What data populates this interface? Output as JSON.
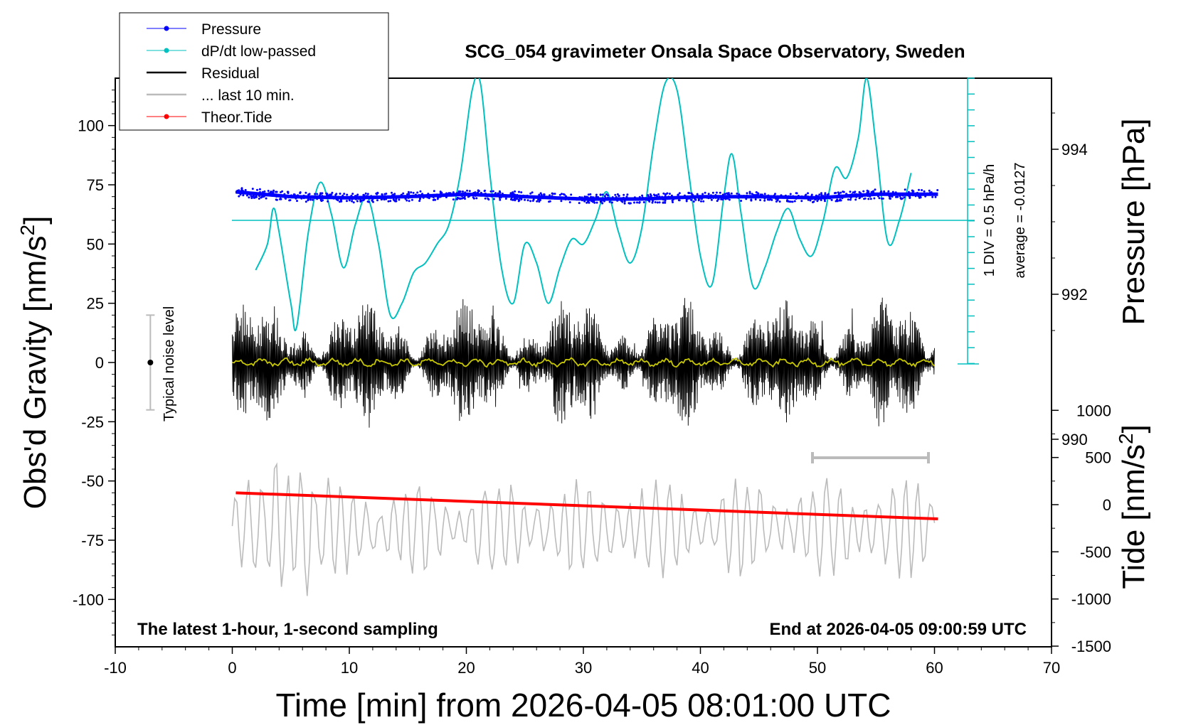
{
  "chart_data": {
    "type": "line",
    "title": "SCG_054 gravimeter Onsala Space Observatory, Sweden",
    "xlabel": "Time [min] from 2026-04-05 08:01:00 UTC",
    "ylabel_left": "Obs'd Gravity [nm/s",
    "ylabel_left_sup": "2",
    "ylabel_left_close": "]",
    "ylabel_right_pressure": "Pressure [hPa]",
    "ylabel_right_tide": "Tide [nm/s",
    "ylabel_right_tide_sup": "2",
    "ylabel_right_tide_close": "]",
    "xlim": [
      -10,
      70
    ],
    "ylim": [
      -120,
      120
    ],
    "x_ticks": [
      "-10",
      "0",
      "10",
      "20",
      "30",
      "40",
      "50",
      "60",
      "70"
    ],
    "y_ticks": [
      "100",
      "75",
      "50",
      "25",
      "0",
      "-25",
      "-50",
      "-75",
      "-100"
    ],
    "pressure_ticks": [
      "994",
      "992",
      "990"
    ],
    "tide_ticks": [
      "1000",
      "500",
      "0",
      "-500",
      "-1000",
      "-1500"
    ],
    "legend": [
      {
        "label": "Pressure",
        "color": "#0000ff",
        "marker": true
      },
      {
        "label": "dP/dt low-passed",
        "color": "#00c0c0",
        "marker": true
      },
      {
        "label": "Residual",
        "color": "#000000",
        "marker": false
      },
      {
        "label": "... last 10 min.",
        "color": "#bbbbbb",
        "marker": false
      },
      {
        "label": "Theor.Tide",
        "color": "#ff0000",
        "marker": true
      }
    ],
    "annotations": {
      "left_bottom": "The latest 1-hour, 1-second sampling",
      "right_bottom": "End at 2026-04-05 09:00:59 UTC",
      "noise_label": "Typical noise level",
      "div_label": "1 DIV = 0.5 hPa/h",
      "average_label": "average = -0.0127"
    },
    "noise_bar": {
      "x": -7,
      "y": 0,
      "half_range": 20
    },
    "series": [
      {
        "name": "Pressure",
        "color": "#0000ff",
        "x": [
          0.3,
          5,
          10,
          15,
          20,
          25,
          30,
          35,
          40,
          45,
          50,
          55,
          60.3
        ],
        "y": [
          72,
          70,
          69.5,
          70,
          71,
          70,
          69,
          69,
          70,
          70,
          69.5,
          71,
          71
        ]
      },
      {
        "name": "dP/dt low-passed",
        "color": "#00c0c0",
        "x": [
          2,
          3,
          3.5,
          4,
          5,
          5.5,
          6.5,
          7.5,
          8.5,
          9.5,
          10.5,
          11.5,
          12.5,
          13.5,
          14.5,
          15.5,
          16.5,
          17.5,
          18.5,
          19.5,
          20.5,
          21.2,
          22,
          23,
          24,
          25,
          26,
          27,
          28,
          29,
          30,
          31,
          32,
          33,
          34,
          35,
          36,
          37,
          38,
          39,
          40,
          41,
          42,
          42.7,
          43.5,
          44.5,
          45.5,
          46.5,
          47.5,
          48.5,
          49.5,
          50.5,
          51.5,
          52.5,
          53.5,
          54.2,
          55,
          56,
          57,
          58
        ],
        "y": [
          39,
          50,
          65,
          55,
          25,
          15,
          55,
          76,
          62,
          40,
          58,
          70,
          50,
          20,
          25,
          38,
          42,
          50,
          58,
          80,
          115,
          118,
          80,
          40,
          25,
          50,
          42,
          25,
          40,
          52,
          50,
          60,
          72,
          55,
          42,
          57,
          92,
          118,
          115,
          80,
          45,
          33,
          70,
          88,
          62,
          32,
          40,
          55,
          65,
          52,
          45,
          60,
          82,
          78,
          95,
          120,
          92,
          51,
          60,
          80
        ]
      },
      {
        "name": "Residual",
        "color": "#000000",
        "x_range": [
          0,
          60
        ],
        "amplitude": 25
      },
      {
        "name": "... last 10 min.",
        "color": "#bbbbbb",
        "x_range": [
          0,
          60
        ],
        "baseline": -70,
        "amplitude": 18
      },
      {
        "name": "Theor.Tide",
        "color": "#ff0000",
        "x": [
          0.3,
          60.3
        ],
        "y": [
          -55,
          -66
        ]
      }
    ]
  }
}
